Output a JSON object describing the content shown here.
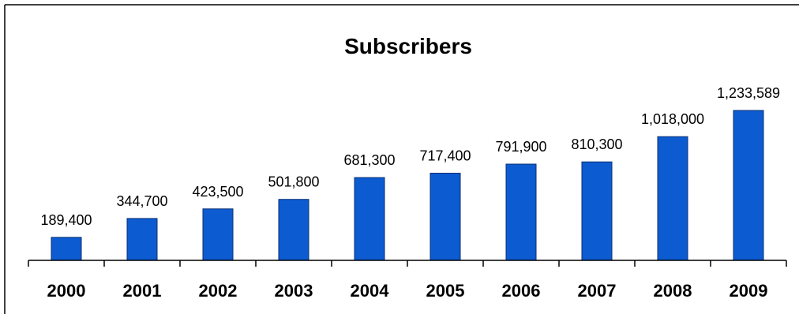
{
  "chart_data": {
    "type": "bar",
    "title": "Subscribers",
    "xlabel": "",
    "ylabel": "",
    "categories": [
      "2000",
      "2001",
      "2002",
      "2003",
      "2004",
      "2005",
      "2006",
      "2007",
      "2008",
      "2009"
    ],
    "values": [
      189400,
      344700,
      423500,
      501800,
      681300,
      717400,
      791900,
      810300,
      1018000,
      1233589
    ],
    "value_labels": [
      "189,400",
      "344,700",
      "423,500",
      "501,800",
      "681,300",
      "717,400",
      "791,900",
      "810,300",
      "1,018,000",
      "1,233,589"
    ],
    "ylim": [
      0,
      1233589
    ],
    "grid": false,
    "legend": "none",
    "bar_color": "#0d5bd0",
    "bar_edge_color": "#0a2f74"
  }
}
